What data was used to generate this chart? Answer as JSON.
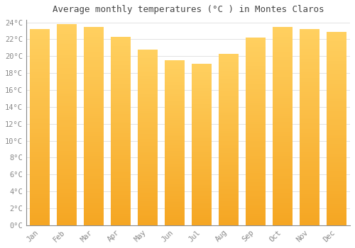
{
  "title": "Average monthly temperatures (°C ) in Montes Claros",
  "months": [
    "Jan",
    "Feb",
    "Mar",
    "Apr",
    "May",
    "Jun",
    "Jul",
    "Aug",
    "Sep",
    "Oct",
    "Nov",
    "Dec"
  ],
  "values": [
    23.2,
    23.8,
    23.5,
    22.3,
    20.8,
    19.5,
    19.1,
    20.3,
    22.2,
    23.5,
    23.2,
    22.9
  ],
  "bar_color_bottom": "#F5A623",
  "bar_color_top": "#FFD060",
  "background_color": "#FFFFFF",
  "grid_color": "#DDDDDD",
  "tick_label_color": "#888888",
  "title_color": "#444444",
  "ylim_min": 0,
  "ylim_max": 24,
  "ytick_step": 2,
  "title_fontsize": 9,
  "tick_fontsize": 7.5,
  "font_family": "monospace"
}
